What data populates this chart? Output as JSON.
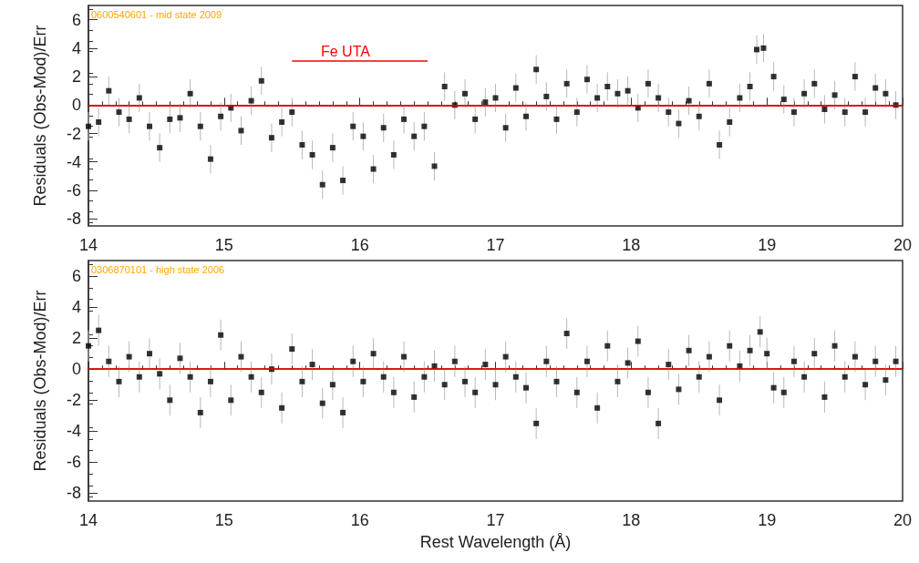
{
  "chart_data": [
    {
      "type": "scatter",
      "ylabel": "Residuals (Obs-Mod)/Err",
      "xlim": [
        14,
        20
      ],
      "xticks": [
        14,
        15,
        16,
        17,
        18,
        19,
        20
      ],
      "ylim": [
        -8.5,
        7
      ],
      "yticks": [
        -8,
        -6,
        -4,
        -2,
        0,
        2,
        4,
        6
      ],
      "marker": "square",
      "annotations": [
        "0600540601 - mid state 2009",
        "Fe UTA"
      ],
      "ref_lines": [
        {
          "axis": "y",
          "value": 0,
          "color": "#ff0000"
        }
      ],
      "series": [
        {
          "color": "#000000",
          "x": [
            14.0,
            14.075,
            14.15,
            14.225,
            14.3,
            14.375,
            14.45,
            14.525,
            14.6,
            14.675,
            14.75,
            14.825,
            14.9,
            14.975,
            15.05,
            15.125,
            15.2,
            15.275,
            15.35,
            15.425,
            15.5,
            15.575,
            15.65,
            15.725,
            15.8,
            15.875,
            15.95,
            16.025,
            16.1,
            16.175,
            16.25,
            16.325,
            16.4,
            16.475,
            16.55,
            16.625,
            16.7,
            16.775,
            16.85,
            16.925,
            17.0,
            17.075,
            17.15,
            17.225,
            17.3,
            17.375,
            17.45,
            17.525,
            17.6,
            17.675,
            17.75,
            17.825,
            17.9,
            17.975,
            18.05,
            18.125,
            18.2,
            18.275,
            18.35,
            18.425,
            18.5,
            18.575,
            18.65,
            18.725,
            18.8,
            18.875,
            18.925,
            18.975,
            19.05,
            19.125,
            19.2,
            19.275,
            19.35,
            19.425,
            19.5,
            19.575,
            19.65,
            19.725,
            19.8,
            19.875,
            19.95
          ],
          "values": [
            -1.5,
            -1.2,
            1.0,
            -0.5,
            -1.0,
            0.5,
            -1.5,
            -3.0,
            -1.0,
            -0.9,
            0.8,
            -1.5,
            -3.8,
            -0.8,
            -0.2,
            -1.8,
            0.3,
            1.7,
            -2.3,
            -1.2,
            -0.5,
            -2.8,
            -3.5,
            -5.6,
            -3.0,
            -5.3,
            -1.5,
            -2.2,
            -4.5,
            -1.6,
            -3.5,
            -1.0,
            -2.2,
            -1.5,
            -4.3,
            1.3,
            0.0,
            0.8,
            -1.0,
            0.2,
            0.5,
            -1.6,
            1.2,
            -0.8,
            2.5,
            0.6,
            -1.0,
            1.5,
            -0.5,
            1.8,
            0.5,
            1.3,
            0.8,
            1.0,
            -0.2,
            1.5,
            0.5,
            -0.5,
            -1.3,
            0.3,
            -0.8,
            1.5,
            -2.8,
            -1.2,
            0.5,
            1.3,
            3.9,
            4.0,
            2.0,
            0.4,
            -0.5,
            0.8,
            1.5,
            -0.3,
            0.7,
            -0.5,
            2.0,
            -0.5,
            1.2,
            0.8,
            0.0
          ],
          "errors": [
            1,
            1,
            1,
            1,
            1,
            1,
            1,
            1,
            1,
            1,
            1,
            1,
            1,
            1,
            1,
            1,
            1,
            1,
            1,
            1,
            1,
            1,
            1,
            1,
            1,
            1,
            1,
            1,
            1,
            1,
            1,
            1,
            1,
            1,
            1,
            1,
            1,
            1,
            1,
            1,
            1,
            1,
            1,
            1,
            1,
            1,
            1,
            1,
            1,
            1,
            1,
            1,
            1,
            1,
            1,
            1,
            1,
            1,
            1,
            1,
            1,
            1,
            1,
            1,
            1,
            1,
            1,
            1,
            1,
            1,
            1,
            1,
            1,
            1,
            1,
            1,
            1,
            1,
            1,
            1,
            1
          ]
        },
        {
          "type": "line",
          "color": "#ff0000",
          "marker": "none",
          "x": [
            15.5,
            16.5
          ],
          "values": [
            3.1,
            3.1
          ]
        }
      ]
    },
    {
      "type": "scatter",
      "ylabel": "Residuals (Obs-Mod)/Err",
      "xlabel": "Rest Wavelength (Å)",
      "xlim": [
        14,
        20
      ],
      "xticks": [
        14,
        15,
        16,
        17,
        18,
        19,
        20
      ],
      "ylim": [
        -8.5,
        7
      ],
      "yticks": [
        -8,
        -6,
        -4,
        -2,
        0,
        2,
        4,
        6
      ],
      "marker": "square",
      "annotations": [
        "0306870101 - high state 2006"
      ],
      "ref_lines": [
        {
          "axis": "y",
          "value": 0,
          "color": "#ff0000"
        }
      ],
      "series": [
        {
          "color": "#000000",
          "x": [
            14.0,
            14.075,
            14.15,
            14.225,
            14.3,
            14.375,
            14.45,
            14.525,
            14.6,
            14.675,
            14.75,
            14.825,
            14.9,
            14.975,
            15.05,
            15.125,
            15.2,
            15.275,
            15.35,
            15.425,
            15.5,
            15.575,
            15.65,
            15.725,
            15.8,
            15.875,
            15.95,
            16.025,
            16.1,
            16.175,
            16.25,
            16.325,
            16.4,
            16.475,
            16.55,
            16.625,
            16.7,
            16.775,
            16.85,
            16.925,
            17.0,
            17.075,
            17.15,
            17.225,
            17.3,
            17.375,
            17.45,
            17.525,
            17.6,
            17.675,
            17.75,
            17.825,
            17.9,
            17.975,
            18.05,
            18.125,
            18.2,
            18.275,
            18.35,
            18.425,
            18.5,
            18.575,
            18.65,
            18.725,
            18.8,
            18.875,
            18.95,
            19.0,
            19.05,
            19.125,
            19.2,
            19.275,
            19.35,
            19.425,
            19.5,
            19.575,
            19.65,
            19.725,
            19.8,
            19.875,
            19.95
          ],
          "values": [
            1.5,
            2.5,
            0.5,
            -0.8,
            0.8,
            -0.5,
            1.0,
            -0.3,
            -2.0,
            0.7,
            -0.5,
            -2.8,
            -0.8,
            2.2,
            -2.0,
            0.8,
            -0.5,
            -1.5,
            0.0,
            -2.5,
            1.3,
            -0.8,
            0.3,
            -2.2,
            -1.0,
            -2.8,
            0.5,
            -0.8,
            1.0,
            -0.5,
            -1.5,
            0.8,
            -1.8,
            -0.5,
            0.2,
            -1.0,
            0.5,
            -0.8,
            -1.5,
            0.3,
            -1.0,
            0.8,
            -0.5,
            -1.2,
            -3.5,
            0.5,
            -0.8,
            2.3,
            -1.5,
            0.5,
            -2.5,
            1.5,
            -0.8,
            0.4,
            1.8,
            -1.5,
            -3.5,
            0.3,
            -1.3,
            1.2,
            -0.5,
            0.8,
            -2.0,
            1.5,
            0.2,
            1.2,
            2.4,
            1.0,
            -1.2,
            -1.5,
            0.5,
            -0.5,
            1.0,
            -1.8,
            1.5,
            -0.5,
            0.8,
            -1.0,
            0.5,
            -0.7,
            0.5
          ],
          "errors": [
            1,
            1,
            1,
            1,
            1,
            1,
            1,
            1,
            1,
            1,
            1,
            1,
            1,
            1,
            1,
            1,
            1,
            1,
            1,
            1,
            1,
            1,
            1,
            1,
            1,
            1,
            1,
            1,
            1,
            1,
            1,
            1,
            1,
            1,
            1,
            1,
            1,
            1,
            1,
            1,
            1,
            1,
            1,
            1,
            1,
            1,
            1,
            1,
            1,
            1,
            1,
            1,
            1,
            1,
            1,
            1,
            1,
            1,
            1,
            1,
            1,
            1,
            1,
            1,
            1,
            1,
            1,
            1,
            1,
            1,
            1,
            1,
            1,
            1,
            1,
            1,
            1,
            1,
            1,
            1,
            1
          ]
        }
      ]
    }
  ]
}
